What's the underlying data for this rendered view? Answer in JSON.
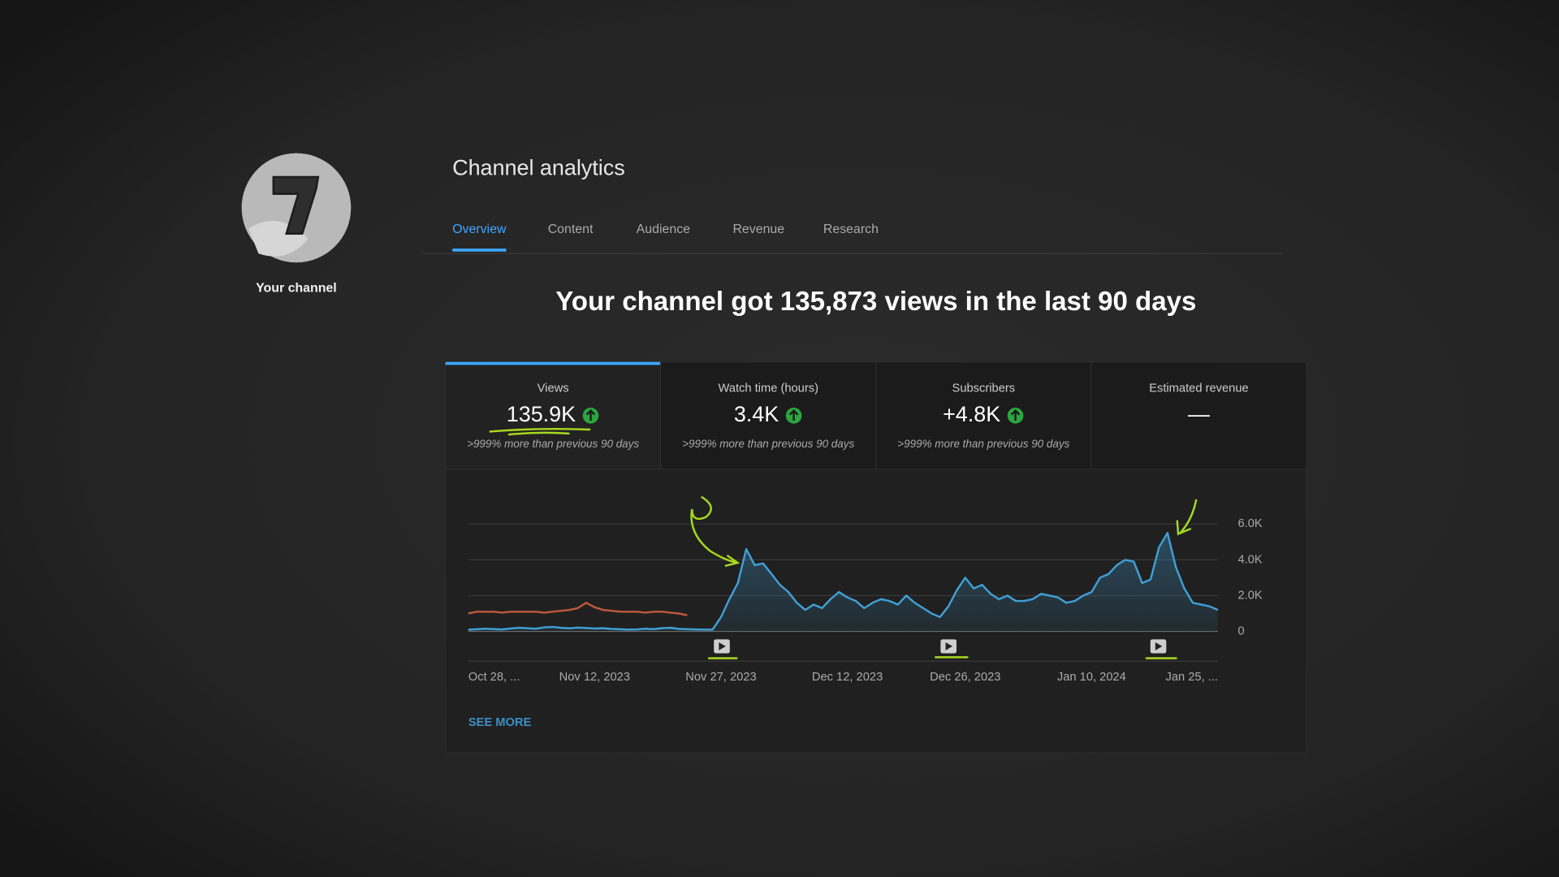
{
  "sidebar": {
    "channel_label": "Your channel"
  },
  "header": {
    "title": "Channel analytics",
    "tabs": [
      "Overview",
      "Content",
      "Audience",
      "Revenue",
      "Research"
    ],
    "active_tab": 0
  },
  "headline": "Your channel got 135,873 views in the last 90 days",
  "metrics": [
    {
      "label": "Views",
      "value": "135.9K",
      "change": ">999% more than previous 90 days"
    },
    {
      "label": "Watch time (hours)",
      "value": "3.4K",
      "change": ">999% more than previous 90 days"
    },
    {
      "label": "Subscribers",
      "value": "+4.8K",
      "change": ">999% more than previous 90 days"
    },
    {
      "label": "Estimated revenue",
      "value": "—"
    }
  ],
  "chart_data": {
    "type": "line",
    "categories": [
      "Oct 28, ...",
      null,
      null,
      null,
      null,
      null,
      null,
      null,
      null,
      null,
      null,
      null,
      null,
      null,
      null,
      "Nov 12, 2023",
      null,
      null,
      null,
      null,
      null,
      null,
      null,
      null,
      null,
      null,
      null,
      null,
      null,
      null,
      "Nov 27, 2023",
      null,
      null,
      null,
      null,
      null,
      null,
      null,
      null,
      null,
      null,
      null,
      null,
      null,
      null,
      "Dec 12, 2023",
      null,
      null,
      null,
      null,
      null,
      null,
      null,
      null,
      null,
      null,
      null,
      null,
      null,
      "Dec 26, 2023",
      null,
      null,
      null,
      null,
      null,
      null,
      null,
      null,
      null,
      null,
      null,
      null,
      null,
      null,
      "Jan 10, 2024",
      null,
      null,
      null,
      null,
      null,
      null,
      null,
      null,
      null,
      null,
      null,
      null,
      null,
      null,
      "Jan 25, ..."
    ],
    "series": [
      {
        "color": "#3f9fd6",
        "values": [
          100,
          120,
          150,
          130,
          110,
          160,
          200,
          180,
          150,
          220,
          250,
          200,
          170,
          210,
          190,
          160,
          180,
          140,
          120,
          100,
          110,
          150,
          130,
          180,
          200,
          140,
          120,
          110,
          100,
          100,
          800,
          1800,
          2700,
          4600,
          3700,
          3800,
          3200,
          2600,
          2200,
          1600,
          1200,
          1500,
          1300,
          1800,
          2200,
          1900,
          1700,
          1300,
          1600,
          1800,
          1700,
          1500,
          2000,
          1600,
          1300,
          1000,
          800,
          1400,
          2300,
          3000,
          2400,
          2600,
          2100,
          1800,
          2000,
          1700,
          1700,
          1800,
          2100,
          2000,
          1900,
          1600,
          1700,
          2000,
          2200,
          3000,
          3200,
          3700,
          4000,
          3900,
          2700,
          2900,
          4700,
          5500,
          3600,
          2400,
          1600,
          1500,
          1400,
          1200
        ]
      },
      {
        "color": "#c0573e",
        "values": [
          1000,
          1100,
          1100,
          1100,
          1050,
          1100,
          1100,
          1100,
          1100,
          1050,
          1100,
          1150,
          1200,
          1300,
          1600,
          1350,
          1200,
          1150,
          1100,
          1100,
          1100,
          1050,
          1100,
          1100,
          1050,
          1000,
          900,
          null,
          null,
          null,
          null,
          null,
          null,
          null,
          null,
          null,
          null,
          null,
          null,
          null,
          null,
          null,
          null,
          null,
          null,
          null,
          null,
          null,
          null,
          null,
          null,
          null,
          null,
          null,
          null,
          null,
          null,
          null,
          null,
          null,
          null,
          null,
          null,
          null,
          null,
          null,
          null,
          null,
          null,
          null,
          null,
          null,
          null,
          null,
          null,
          null,
          null,
          null,
          null,
          null,
          null,
          null,
          null,
          null,
          null,
          null,
          null,
          null,
          null,
          null
        ]
      }
    ],
    "ylim": [
      0,
      7000
    ],
    "yticks": [
      0,
      {
        "value": 2000,
        "label": "2.0K"
      },
      {
        "value": 4000,
        "label": "4.0K"
      },
      {
        "value": 6000,
        "label": "6.0K"
      }
    ],
    "grid": true
  },
  "see_more": "SEE MORE"
}
